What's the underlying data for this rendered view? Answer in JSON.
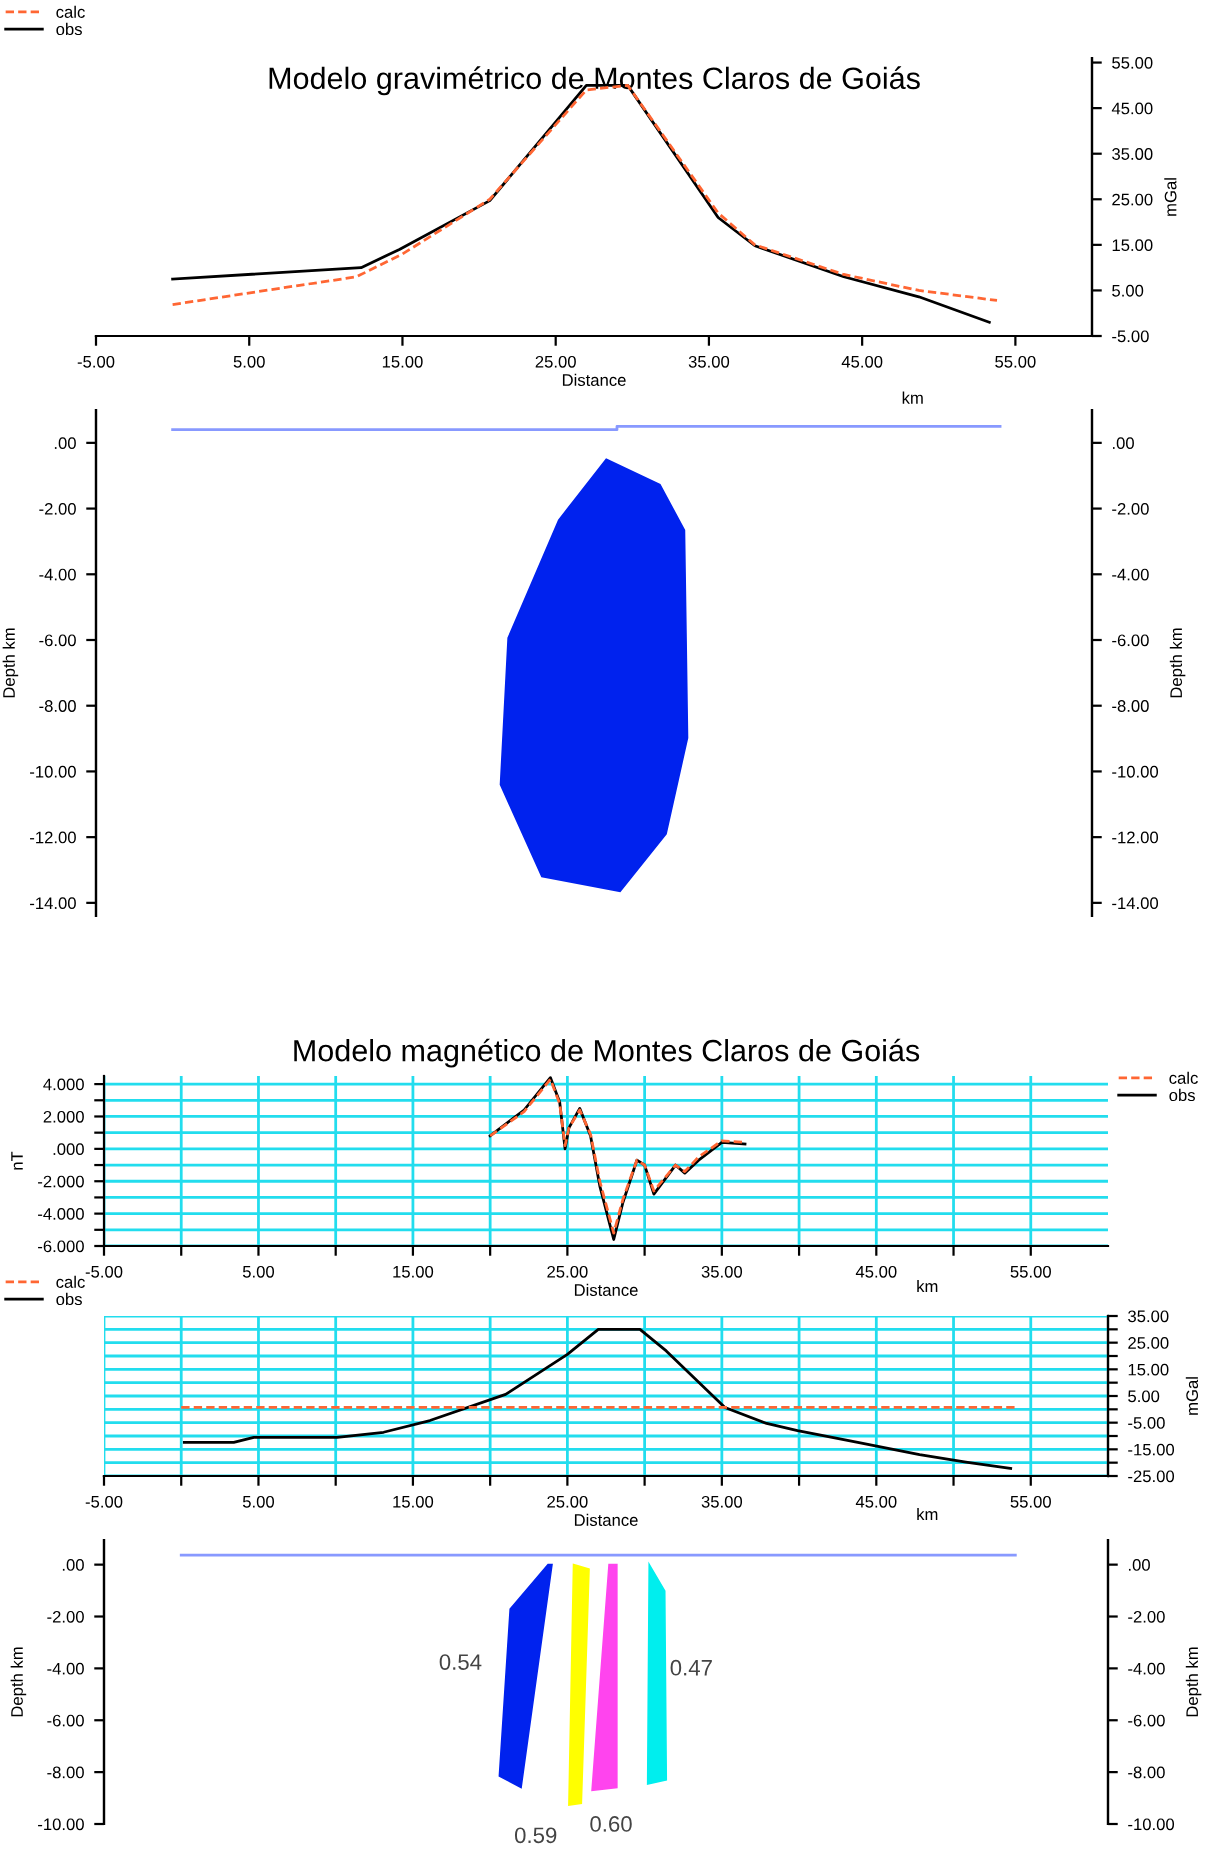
{
  "chart_data": [
    {
      "type": "line",
      "title": "Modelo gravimétrico de Montes Claros de Goiás",
      "xlabel": "Distance",
      "y2label": "mGal",
      "annotations": [
        "km"
      ],
      "legend": "top left",
      "xlim": [
        -5,
        60
      ],
      "y2lim": [
        -5,
        56
      ],
      "xticks": [
        {
          "value": -5,
          "label": "-5.00"
        },
        {
          "value": 5,
          "label": "5.00"
        },
        {
          "value": 15,
          "label": "15.00"
        },
        {
          "value": 25,
          "label": "25.00"
        },
        {
          "value": 35,
          "label": "35.00"
        },
        {
          "value": 45,
          "label": "45.00"
        },
        {
          "value": 55,
          "label": "55.00"
        }
      ],
      "y2ticks": [
        {
          "value": -5,
          "label": "-5.00"
        },
        {
          "value": 5,
          "label": "5.00"
        },
        {
          "value": 15,
          "label": "15.00"
        },
        {
          "value": 25,
          "label": "25.00"
        },
        {
          "value": 35,
          "label": "35.00"
        },
        {
          "value": 45,
          "label": "45.00"
        },
        {
          "value": 55,
          "label": "55.00"
        }
      ],
      "series": [
        {
          "name": "calc",
          "color": "#ff6633",
          "line_style": "dashed",
          "axis": "y2",
          "x": [
            0,
            12,
            15,
            20.7,
            27,
            29.7,
            35.6,
            38,
            43.8,
            48.7,
            53.8
          ],
          "values": [
            1.9,
            8,
            13,
            25,
            49,
            50,
            22,
            15,
            8.5,
            5,
            2.8
          ]
        },
        {
          "name": "obs",
          "color": "#000000",
          "line_style": "solid",
          "axis": "y2",
          "x": [
            0,
            12.3,
            14.8,
            20.7,
            27,
            29.7,
            35.6,
            38,
            43.8,
            48.7,
            53.3
          ],
          "values": [
            7.5,
            10,
            14,
            24.7,
            50,
            50,
            21,
            14.8,
            8,
            3.6,
            -2
          ]
        }
      ]
    },
    {
      "type": "area",
      "ylabel": "Depth km",
      "y2label": "Depth km",
      "tick_labels": "y",
      "xlim": [
        -5,
        60
      ],
      "ylim": [
        -14.4,
        1.0
      ],
      "y2lim": [
        -14.4,
        1.0
      ],
      "yticks": [
        {
          "value": 0,
          "label": ".00"
        },
        {
          "value": -2,
          "label": "-2.00"
        },
        {
          "value": -4,
          "label": "-4.00"
        },
        {
          "value": -6,
          "label": "-6.00"
        },
        {
          "value": -8,
          "label": "-8.00"
        },
        {
          "value": -10,
          "label": "-10.00"
        },
        {
          "value": -12,
          "label": "-12.00"
        },
        {
          "value": -14,
          "label": "-14.00"
        }
      ],
      "y2ticks": [
        {
          "value": 0,
          "label": ".00"
        },
        {
          "value": -2,
          "label": "-2.00"
        },
        {
          "value": -4,
          "label": "-4.00"
        },
        {
          "value": -6,
          "label": "-6.00"
        },
        {
          "value": -8,
          "label": "-8.00"
        },
        {
          "value": -10,
          "label": "-10.00"
        },
        {
          "value": -12,
          "label": "-12.00"
        },
        {
          "value": -14,
          "label": "-14.00"
        }
      ],
      "series": [
        {
          "type": "line",
          "color": "#8899ff",
          "x": [
            0,
            29,
            29,
            54
          ],
          "values": [
            0.4,
            0.4,
            0.5,
            0.5
          ]
        },
        {
          "type": "area",
          "color": "#0022ee",
          "x": [
            28.3,
            31.8,
            33.4,
            33.5,
            33.6,
            32.2,
            29.2,
            24.1,
            21.4,
            21.9,
            25.2
          ],
          "values": [
            -0.5,
            -1.27,
            -2.66,
            -5.77,
            -8.98,
            -11.9,
            -13.65,
            -13.2,
            -10.4,
            -5.94,
            -2.35
          ]
        }
      ]
    },
    {
      "type": "line",
      "title": "Modelo magnético de Montes Claros de Goiás",
      "xlabel": "Distance",
      "ylabel": "nT",
      "annotations": [
        "km"
      ],
      "legend": "top right",
      "grid": true,
      "xlim": [
        -5,
        60
      ],
      "ylim": [
        -6,
        4.5
      ],
      "xticks": [
        {
          "value": -5,
          "label": "-5.00"
        },
        {
          "value": 0,
          "label": null
        },
        {
          "value": 5,
          "label": "5.00"
        },
        {
          "value": 10,
          "label": null
        },
        {
          "value": 15,
          "label": "15.00"
        },
        {
          "value": 20,
          "label": null
        },
        {
          "value": 25,
          "label": "25.00"
        },
        {
          "value": 30,
          "label": null
        },
        {
          "value": 35,
          "label": "35.00"
        },
        {
          "value": 40,
          "label": null
        },
        {
          "value": 45,
          "label": "45.00"
        },
        {
          "value": 50,
          "label": null
        },
        {
          "value": 55,
          "label": "55.00"
        }
      ],
      "yticks": [
        {
          "value": -6,
          "label": "-6.000"
        },
        {
          "value": -5,
          "label": null
        },
        {
          "value": -4,
          "label": "-4.000"
        },
        {
          "value": -3,
          "label": null
        },
        {
          "value": -2,
          "label": "-2.000"
        },
        {
          "value": -1,
          "label": null
        },
        {
          "value": 0,
          "label": ".000"
        },
        {
          "value": 1,
          "label": null
        },
        {
          "value": 2,
          "label": "2.000"
        },
        {
          "value": 3,
          "label": null
        },
        {
          "value": 4,
          "label": "4.000"
        }
      ],
      "series": [
        {
          "name": "calc",
          "color": "#ff6633",
          "line_style": "dashed",
          "x": [
            20,
            22.2,
            23.9,
            24.5,
            24.85,
            25.1,
            25.8,
            26.5,
            27.1,
            28,
            28.6,
            29.5,
            30,
            30.6,
            32,
            32.6,
            33.5,
            35,
            36.5
          ],
          "values": [
            0.8,
            2.3,
            4.3,
            2.8,
            0.2,
            1.3,
            2.4,
            0.9,
            -2.0,
            -5.2,
            -3.1,
            -0.7,
            -1.0,
            -2.6,
            -1.0,
            -1.4,
            -0.5,
            0.5,
            0.4
          ]
        },
        {
          "name": "obs",
          "color": "#000000",
          "line_style": "solid",
          "x": [
            20,
            22.2,
            23.9,
            24.5,
            24.85,
            25.1,
            25.8,
            26.5,
            27.1,
            28,
            28.6,
            29.5,
            30,
            30.6,
            32,
            32.6,
            33.5,
            35,
            36.5
          ],
          "values": [
            0.8,
            2.4,
            4.4,
            2.9,
            0.0,
            1.3,
            2.5,
            0.8,
            -2.3,
            -5.6,
            -3.3,
            -0.7,
            -1.0,
            -2.8,
            -1.0,
            -1.5,
            -0.7,
            0.4,
            0.3
          ]
        }
      ]
    },
    {
      "type": "line",
      "xlabel": "Distance",
      "y2label": "mGal",
      "annotations": [
        "km"
      ],
      "legend": "top left",
      "grid": true,
      "xlim": [
        -5,
        60
      ],
      "y2lim": [
        -25,
        35
      ],
      "xticks": [
        {
          "value": -5,
          "label": "-5.00"
        },
        {
          "value": 0,
          "label": null
        },
        {
          "value": 5,
          "label": "5.00"
        },
        {
          "value": 10,
          "label": null
        },
        {
          "value": 15,
          "label": "15.00"
        },
        {
          "value": 20,
          "label": null
        },
        {
          "value": 25,
          "label": "25.00"
        },
        {
          "value": 30,
          "label": null
        },
        {
          "value": 35,
          "label": "35.00"
        },
        {
          "value": 40,
          "label": null
        },
        {
          "value": 45,
          "label": "45.00"
        },
        {
          "value": 50,
          "label": null
        },
        {
          "value": 55,
          "label": "55.00"
        }
      ],
      "y2ticks": [
        {
          "value": -25,
          "label": "-25.00"
        },
        {
          "value": -20,
          "label": null
        },
        {
          "value": -15,
          "label": "-15.00"
        },
        {
          "value": -10,
          "label": null
        },
        {
          "value": -5,
          "label": "-5.00"
        },
        {
          "value": 0,
          "label": null
        },
        {
          "value": 5,
          "label": "5.00"
        },
        {
          "value": 10,
          "label": null
        },
        {
          "value": 15,
          "label": "15.00"
        },
        {
          "value": 20,
          "label": null
        },
        {
          "value": 25,
          "label": "25.00"
        },
        {
          "value": 30,
          "label": null
        },
        {
          "value": 35,
          "label": "35.00"
        }
      ],
      "series": [
        {
          "name": "calc",
          "color": "#ff6633",
          "line_style": "dashed",
          "axis": "y2",
          "x": [
            0,
            54
          ],
          "values": [
            0.7,
            0.7
          ]
        },
        {
          "name": "obs",
          "color": "#000000",
          "line_style": "solid",
          "axis": "y2",
          "x": [
            0.2,
            3.4,
            4.7,
            10.1,
            13.1,
            16.1,
            21,
            25,
            27,
            29.7,
            31.4,
            35.2,
            37.9,
            39.9,
            43.8,
            47.8,
            50.8,
            53.7
          ],
          "values": [
            -12.4,
            -12.4,
            -10.5,
            -10.5,
            -8.6,
            -4.2,
            5.6,
            20.6,
            30,
            30,
            21.9,
            0.7,
            -5.3,
            -8,
            -12.4,
            -17,
            -19.8,
            -22.2
          ]
        }
      ]
    },
    {
      "type": "area",
      "ylabel": "Depth km",
      "y2label": "Depth km",
      "tick_labels": "y",
      "xlim": [
        -5,
        60
      ],
      "ylim": [
        -10.0,
        0.95
      ],
      "y2lim": [
        -10.0,
        0.95
      ],
      "yticks": [
        {
          "value": 0,
          "label": ".00"
        },
        {
          "value": -2,
          "label": "-2.00"
        },
        {
          "value": -4,
          "label": "-4.00"
        },
        {
          "value": -6,
          "label": "-6.00"
        },
        {
          "value": -8,
          "label": "-8.00"
        },
        {
          "value": -10,
          "label": "-10.00"
        }
      ],
      "y2ticks": [
        {
          "value": 0,
          "label": ".00"
        },
        {
          "value": -2,
          "label": "-2.00"
        },
        {
          "value": -4,
          "label": "-4.00"
        },
        {
          "value": -6,
          "label": "-6.00"
        },
        {
          "value": -8,
          "label": "-8.00"
        },
        {
          "value": -10,
          "label": "-10.00"
        }
      ],
      "annotations": [
        "0.54",
        "0.59",
        "0.60",
        "0.47"
      ],
      "series": [
        {
          "type": "line",
          "color": "#8899ff",
          "x": [
            0,
            54
          ],
          "values": [
            0.37,
            0.37
          ]
        },
        {
          "type": "area",
          "color": "#0022ee",
          "x": [
            23.75,
            24.0,
            22.0,
            20.6,
            21.3
          ],
          "values": [
            0.0,
            0.0,
            -8.59,
            -8.15,
            -1.71
          ]
        },
        {
          "type": "area",
          "color": "#ffff00",
          "x": [
            25.4,
            26.4,
            25.9,
            25.1
          ],
          "values": [
            0.0,
            -0.17,
            -9.2,
            -9.27
          ]
        },
        {
          "type": "area",
          "color": "#ff44ee",
          "x": [
            27.7,
            28.2,
            28.2,
            26.6
          ],
          "values": [
            0.0,
            0.0,
            -8.59,
            -8.7
          ]
        },
        {
          "type": "area",
          "color": "#00eeee",
          "x": [
            30.3,
            31.3,
            31.4,
            30.2
          ],
          "values": [
            0.0,
            -1.02,
            -8.3,
            -8.46
          ]
        }
      ]
    }
  ]
}
